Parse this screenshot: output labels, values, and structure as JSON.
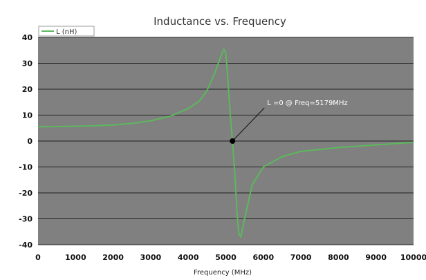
{
  "chart_data": {
    "type": "line",
    "title": "Inductance vs. Frequency",
    "xlabel": "Frequency (MHz)",
    "ylabel": "",
    "xlim": [
      0,
      10000
    ],
    "ylim": [
      -40,
      40
    ],
    "xticks": [
      0,
      1000,
      2000,
      3000,
      4000,
      5000,
      6000,
      7000,
      8000,
      9000,
      10000
    ],
    "yticks": [
      -40,
      -30,
      -20,
      -10,
      0,
      10,
      20,
      30,
      40
    ],
    "grid": true,
    "legend": "top-left",
    "colors": {
      "plot_bg": "#808080",
      "line": "#5cb85c",
      "grid": "#000000"
    },
    "series": [
      {
        "name": "L (nH)",
        "x": [
          0,
          500,
          1000,
          1500,
          2000,
          2500,
          3000,
          3500,
          4000,
          4300,
          4500,
          4700,
          4850,
          4950,
          5000,
          5050,
          5120,
          5179,
          5250,
          5300,
          5350,
          5400,
          5500,
          5700,
          6000,
          6500,
          7000,
          8000,
          9000,
          10000
        ],
        "y": [
          5.5,
          5.6,
          5.7,
          5.9,
          6.2,
          6.8,
          7.8,
          9.5,
          12.5,
          15.5,
          19.5,
          26,
          32,
          35.5,
          34,
          25,
          10,
          0,
          -15,
          -28,
          -36,
          -37,
          -30,
          -17,
          -10,
          -6,
          -4,
          -2.5,
          -1.5,
          -0.5
        ]
      }
    ],
    "annotation": {
      "text": "L =0 @ Freq=5179MHz",
      "x": 5179,
      "y": 0
    }
  }
}
